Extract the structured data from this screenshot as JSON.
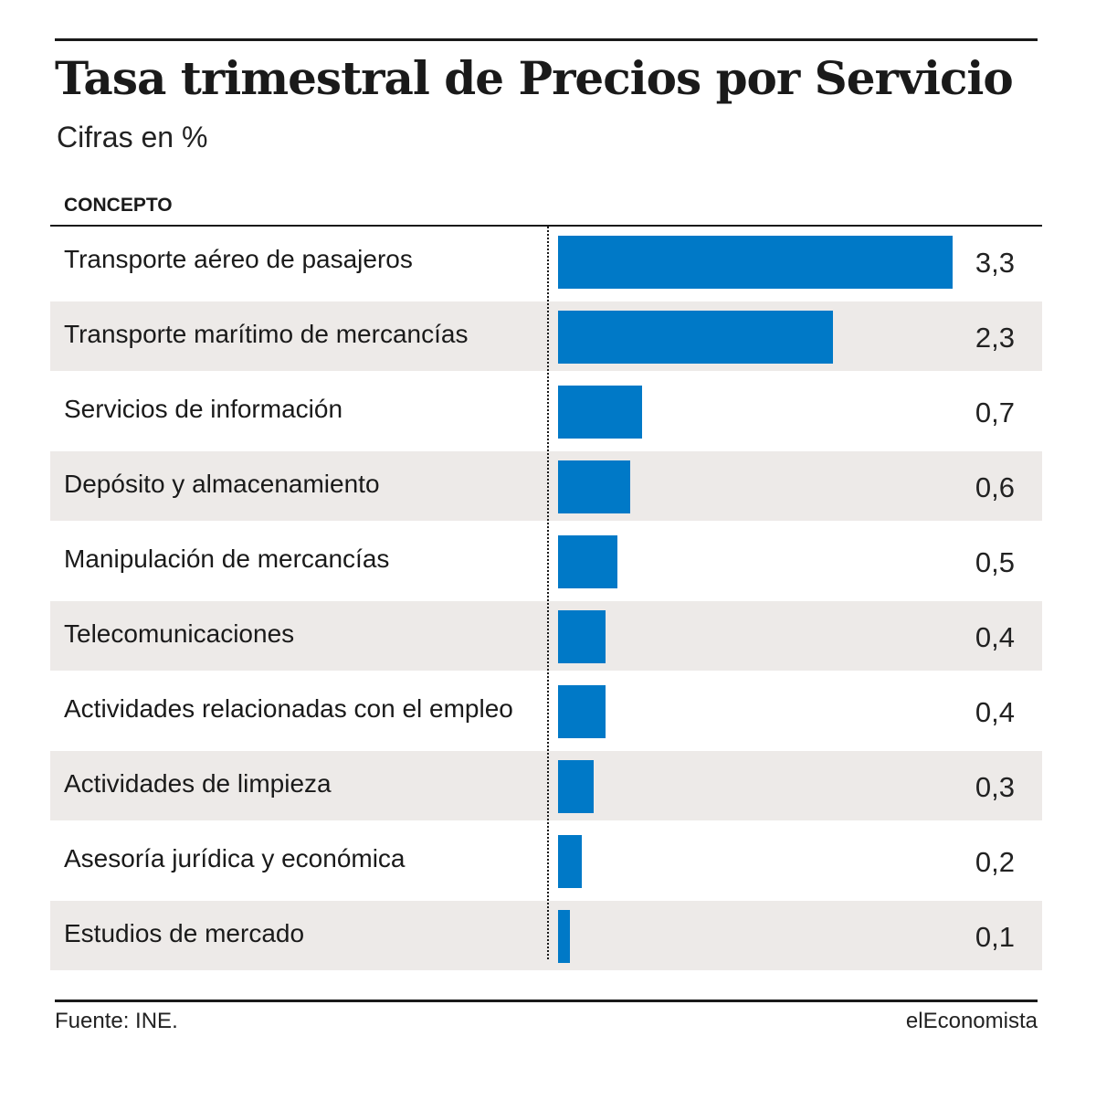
{
  "title": "Tasa trimestral de Precios por Servicio",
  "subtitle": "Cifras en %",
  "column_header": "CONCEPTO",
  "source": "Fuente: INE.",
  "brand": "elEconomista",
  "colors": {
    "bar": "#0079c7",
    "row_shade": "#edeae8"
  },
  "chart_data": {
    "type": "bar",
    "orientation": "horizontal",
    "title": "Tasa trimestral de Precios por Servicio",
    "subtitle": "Cifras en %",
    "categories": [
      "Transporte aéreo de pasajeros",
      "Transporte marítimo de mercancías",
      "Servicios de información",
      "Depósito y almacenamiento",
      "Manipulación de mercancías",
      "Telecomunicaciones",
      "Actividades relacionadas con el empleo",
      "Actividades de limpieza",
      "Asesoría jurídica y económica",
      "Estudios de mercado"
    ],
    "values": [
      3.3,
      2.3,
      0.7,
      0.6,
      0.5,
      0.4,
      0.4,
      0.3,
      0.2,
      0.1
    ],
    "value_labels": [
      "3,3",
      "2,3",
      "0,7",
      "0,6",
      "0,5",
      "0,4",
      "0,4",
      "0,3",
      "0,2",
      "0,1"
    ],
    "xlim": [
      0,
      3.3
    ],
    "grid": false
  }
}
